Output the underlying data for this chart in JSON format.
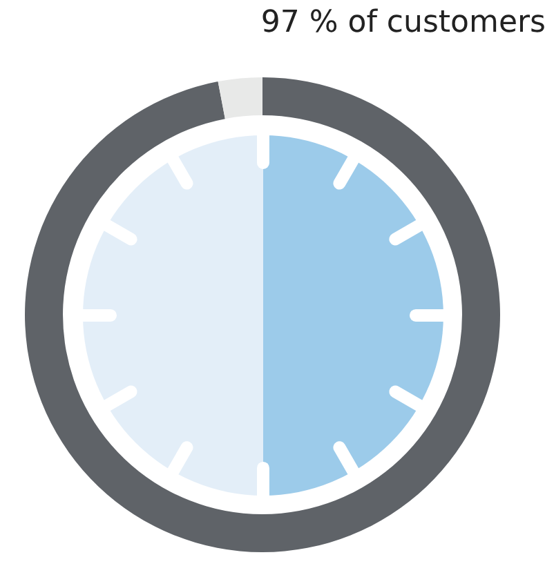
{
  "chart_data": {
    "type": "donut",
    "categories": [
      null,
      null
    ],
    "values": [
      97,
      3
    ],
    "colors": [
      "#5f6368",
      "#e8e9e8"
    ],
    "annotations": [
      "97 % of customers"
    ],
    "legend": false
  }
}
